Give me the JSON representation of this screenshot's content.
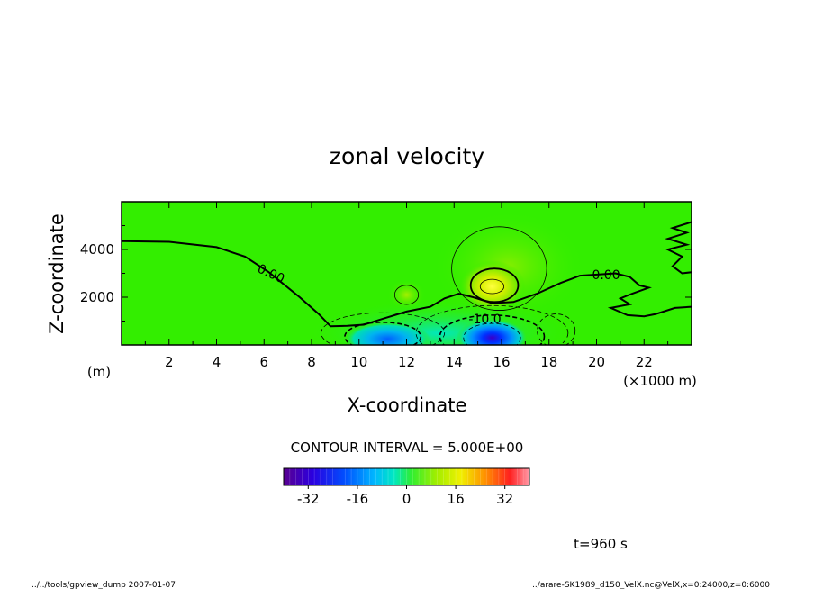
{
  "chart_data": {
    "type": "heatmap",
    "title": "zonal velocity",
    "xlabel": "X-coordinate",
    "ylabel": "Z-coordinate",
    "x_unit": "(×1000 m)",
    "y_unit": "(m)",
    "xlim": [
      0,
      24
    ],
    "ylim": [
      0,
      6000
    ],
    "x_ticks": [
      2,
      4,
      6,
      8,
      10,
      12,
      14,
      16,
      18,
      20,
      22
    ],
    "x_tick_labels": [
      "2",
      "4",
      "6",
      "8",
      "10",
      "12",
      "14",
      "16",
      "18",
      "20",
      "22"
    ],
    "y_ticks": [
      2000,
      4000
    ],
    "y_tick_labels": [
      "2000",
      "4000"
    ],
    "contour_interval_text": "CONTOUR INTERVAL = 5.000E+00",
    "contour_labels": [
      {
        "text": "0.00",
        "x": 6.3,
        "z": 3000
      },
      {
        "text": "0.00",
        "x": 20.4,
        "z": 2950
      },
      {
        "text": "-10.0",
        "x": 15.3,
        "z": 1100
      }
    ],
    "zero_contours": [
      {
        "name": "upper",
        "points": [
          [
            0,
            4350
          ],
          [
            2,
            4320
          ],
          [
            4,
            4100
          ],
          [
            5.2,
            3700
          ],
          [
            6.2,
            3050
          ],
          [
            7.5,
            2000
          ],
          [
            8.3,
            1300
          ],
          [
            8.8,
            780
          ],
          [
            9.5,
            800
          ],
          [
            10.2,
            850
          ],
          [
            11,
            1100
          ],
          [
            12,
            1400
          ],
          [
            13,
            1600
          ],
          [
            13.6,
            1950
          ],
          [
            14.2,
            2150
          ],
          [
            14.8,
            2000
          ],
          [
            15.6,
            1750
          ],
          [
            16.5,
            1800
          ],
          [
            17.5,
            2150
          ],
          [
            18.5,
            2600
          ],
          [
            19.3,
            2900
          ],
          [
            20.1,
            2950
          ],
          [
            20.8,
            3000
          ],
          [
            21.4,
            2850
          ],
          [
            21.8,
            2500
          ],
          [
            22.2,
            2400
          ],
          [
            21.5,
            2150
          ],
          [
            21.0,
            1950
          ],
          [
            21.4,
            1700
          ],
          [
            20.6,
            1550
          ],
          [
            21.3,
            1250
          ],
          [
            22.0,
            1200
          ],
          [
            22.5,
            1300
          ],
          [
            23.3,
            1550
          ],
          [
            24,
            1600
          ]
        ]
      },
      {
        "name": "right-edge",
        "points": [
          [
            24,
            5150
          ],
          [
            23.2,
            4900
          ],
          [
            23.8,
            4700
          ],
          [
            23.0,
            4450
          ],
          [
            23.8,
            4200
          ],
          [
            23.0,
            4000
          ],
          [
            23.6,
            3700
          ],
          [
            23.2,
            3300
          ],
          [
            23.6,
            3000
          ],
          [
            24,
            3050
          ]
        ]
      }
    ],
    "positive_contours": [
      {
        "level": 5,
        "center": [
          15.9,
          3200
        ],
        "rx": 2.0,
        "rz": 1750
      },
      {
        "level": 5,
        "center": [
          12.0,
          2100
        ],
        "rx": 0.5,
        "rz": 400
      },
      {
        "level": 10,
        "center": [
          15.7,
          2500
        ],
        "rx": 1.0,
        "rz": 700
      },
      {
        "level": 15,
        "center": [
          15.6,
          2450
        ],
        "rx": 0.5,
        "rz": 300
      }
    ],
    "negative_cores": [
      {
        "center": [
          15.6,
          300
        ],
        "min": -32,
        "rx": 1.5,
        "rz": 800
      },
      {
        "center": [
          11.2,
          250
        ],
        "min": -18,
        "rx": 1.8,
        "rz": 700
      }
    ],
    "colorbar": {
      "min": -40,
      "max": 40,
      "tick_values": [
        -32,
        -16,
        0,
        16,
        32
      ],
      "tick_labels": [
        "-32",
        "-16",
        "0",
        "16",
        "32"
      ]
    },
    "colors": {
      "background_field": "#33ee00",
      "zero_line": "#000000"
    }
  },
  "time_label": "t=960 s",
  "footer_left": "../../tools/gpview_dump  2007-01-07",
  "footer_right": "../arare-SK1989_d150_VelX.nc@VelX,x=0:24000,z=0:6000"
}
